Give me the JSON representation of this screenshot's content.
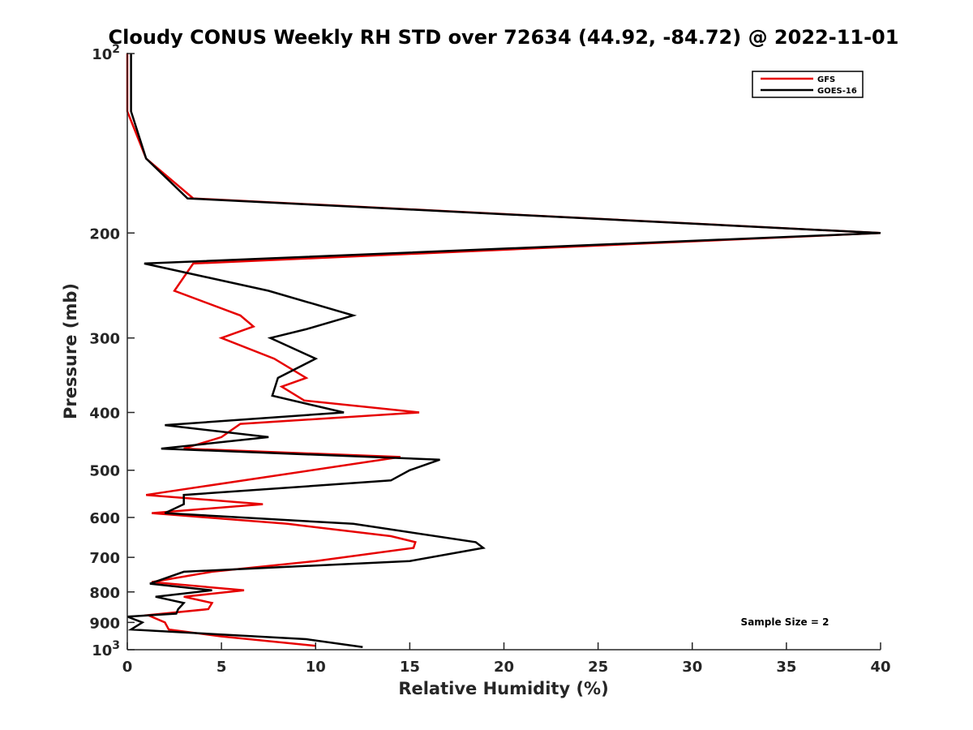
{
  "chart_data": {
    "type": "line",
    "title": "Cloudy CONUS Weekly RH STD over 72634 (44.92, -84.72) @ 2022-11-01",
    "xlabel": "Relative Humidity (%)",
    "ylabel": "Pressure (mb)",
    "xlim": [
      0,
      40
    ],
    "ylim": [
      100,
      1000
    ],
    "y_scale": "log",
    "y_reversed": true,
    "grid": false,
    "legend_position": "top-right",
    "xticks": [
      "0",
      "5",
      "10",
      "15",
      "20",
      "25",
      "30",
      "35",
      "40"
    ],
    "xtick_values": [
      0,
      5,
      10,
      15,
      20,
      25,
      30,
      35,
      40
    ],
    "yticks": [
      {
        "value": 100,
        "base": "10",
        "exp": "2"
      },
      {
        "value": 200,
        "label": "200"
      },
      {
        "value": 300,
        "label": "300"
      },
      {
        "value": 400,
        "label": "400"
      },
      {
        "value": 500,
        "label": "500"
      },
      {
        "value": 600,
        "label": "600"
      },
      {
        "value": 700,
        "label": "700"
      },
      {
        "value": 800,
        "label": "800"
      },
      {
        "value": 900,
        "label": "900"
      },
      {
        "value": 1000,
        "base": "10",
        "exp": "3"
      }
    ],
    "annotation": "Sample Size = 2",
    "series": [
      {
        "name": "GFS",
        "color": "#e60000",
        "points": [
          [
            0,
            100
          ],
          [
            0,
            125
          ],
          [
            1.0,
            150
          ],
          [
            3.5,
            175
          ],
          [
            40,
            200
          ],
          [
            3.5,
            225
          ],
          [
            2.5,
            250
          ],
          [
            6.0,
            275
          ],
          [
            6.7,
            287
          ],
          [
            5.0,
            300
          ],
          [
            7.8,
            325
          ],
          [
            9.5,
            350
          ],
          [
            8.2,
            362
          ],
          [
            9.4,
            382
          ],
          [
            15.5,
            400
          ],
          [
            6.0,
            418
          ],
          [
            5.0,
            440
          ],
          [
            3.0,
            460
          ],
          [
            14.5,
            475
          ],
          [
            1.0,
            550
          ],
          [
            7.2,
            570
          ],
          [
            1.3,
            590
          ],
          [
            8.5,
            615
          ],
          [
            14.0,
            645
          ],
          [
            15.3,
            660
          ],
          [
            15.2,
            675
          ],
          [
            10.0,
            710
          ],
          [
            4.5,
            740
          ],
          [
            1.3,
            770
          ],
          [
            6.2,
            795
          ],
          [
            3.0,
            815
          ],
          [
            4.5,
            835
          ],
          [
            4.3,
            855
          ],
          [
            1.1,
            875
          ],
          [
            2.0,
            900
          ],
          [
            2.2,
            925
          ],
          [
            5.0,
            950
          ],
          [
            10.0,
            985
          ]
        ]
      },
      {
        "name": "GOES-16",
        "color": "#000000",
        "points": [
          [
            0.2,
            100
          ],
          [
            0.2,
            125
          ],
          [
            1.0,
            150
          ],
          [
            3.2,
            175
          ],
          [
            40,
            200
          ],
          [
            0.9,
            225
          ],
          [
            7.5,
            250
          ],
          [
            12.0,
            275
          ],
          [
            9.5,
            290
          ],
          [
            7.6,
            300
          ],
          [
            10.0,
            325
          ],
          [
            8.0,
            350
          ],
          [
            7.7,
            375
          ],
          [
            11.5,
            400
          ],
          [
            2.0,
            420
          ],
          [
            7.5,
            440
          ],
          [
            1.8,
            460
          ],
          [
            16.6,
            480
          ],
          [
            15.0,
            500
          ],
          [
            14.0,
            520
          ],
          [
            3.0,
            550
          ],
          [
            3.0,
            570
          ],
          [
            2.0,
            590
          ],
          [
            12.0,
            615
          ],
          [
            18.5,
            660
          ],
          [
            18.9,
            675
          ],
          [
            15.0,
            710
          ],
          [
            3.0,
            740
          ],
          [
            1.2,
            775
          ],
          [
            4.5,
            795
          ],
          [
            1.5,
            815
          ],
          [
            3.0,
            835
          ],
          [
            2.7,
            855
          ],
          [
            2.6,
            870
          ],
          [
            0,
            880
          ],
          [
            0.8,
            900
          ],
          [
            0.2,
            925
          ],
          [
            9.5,
            960
          ],
          [
            12.5,
            990
          ]
        ]
      }
    ]
  }
}
